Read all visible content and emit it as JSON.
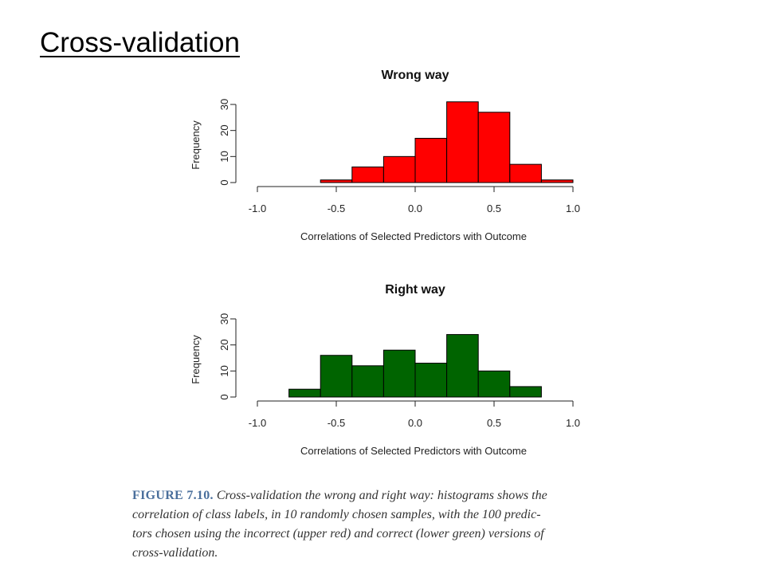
{
  "slide": {
    "title": "Cross-validation"
  },
  "colors": {
    "upper_bars": "#ff0000",
    "lower_bars": "#006400",
    "bar_edge": "#000000",
    "caption_label": "#4a6f9c",
    "caption_text": "#333333"
  },
  "chart_data": [
    {
      "type": "bar",
      "title": "Wrong way",
      "xlabel": "Correlations of Selected Predictors with Outcome",
      "ylabel": "Frequency",
      "xlim": [
        -1.0,
        1.0
      ],
      "ylim": [
        0,
        30
      ],
      "x_ticks": [
        "-1.0",
        "-0.5",
        "0.0",
        "0.5",
        "1.0"
      ],
      "y_ticks": [
        "0",
        "10",
        "20",
        "30"
      ],
      "bin_edges": [
        -0.6,
        -0.4,
        -0.2,
        0.0,
        0.2,
        0.4,
        0.6,
        0.8,
        1.0
      ],
      "values": [
        1,
        6,
        10,
        17,
        31,
        27,
        7,
        1
      ],
      "bar_color": "#ff0000",
      "grid": false,
      "legend": "none"
    },
    {
      "type": "bar",
      "title": "Right way",
      "xlabel": "Correlations of Selected Predictors with Outcome",
      "ylabel": "Frequency",
      "xlim": [
        -1.0,
        1.0
      ],
      "ylim": [
        0,
        30
      ],
      "x_ticks": [
        "-1.0",
        "-0.5",
        "0.0",
        "0.5",
        "1.0"
      ],
      "y_ticks": [
        "0",
        "10",
        "20",
        "30"
      ],
      "bin_edges": [
        -0.8,
        -0.6,
        -0.4,
        -0.2,
        0.0,
        0.2,
        0.4,
        0.6,
        0.8
      ],
      "values": [
        3,
        16,
        12,
        18,
        13,
        24,
        10,
        4
      ],
      "bar_color": "#006400",
      "grid": false,
      "legend": "none"
    }
  ],
  "caption": {
    "label": "FIGURE 7.10.",
    "line1": "Cross-validation the wrong and right way: histograms shows the",
    "line2": "correlation of class labels, in 10 randomly chosen samples, with the 100 predic-",
    "line3": "tors chosen using the incorrect (upper red) and correct (lower green) versions of",
    "line4": "cross-validation."
  }
}
